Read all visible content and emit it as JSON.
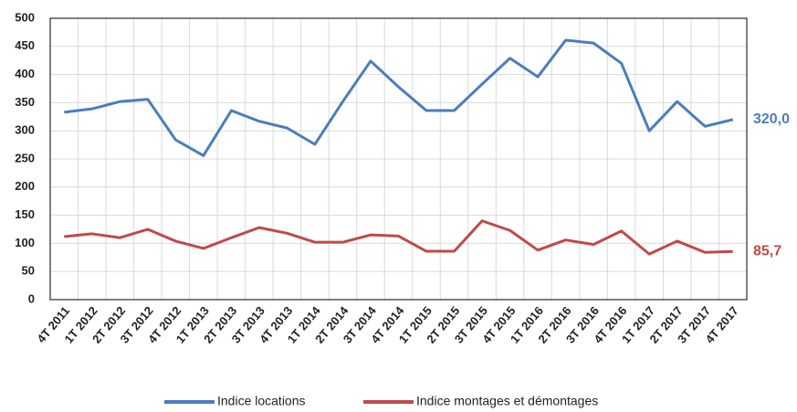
{
  "chart_data": {
    "type": "line",
    "categories": [
      "4T 2011",
      "1T 2012",
      "2T 2012",
      "3T 2012",
      "4T 2012",
      "1T 2013",
      "2T 2013",
      "3T 2013",
      "4T 2013",
      "1T 2014",
      "2T 2014",
      "3T 2014",
      "4T 2014",
      "1T 2015",
      "2T 2015",
      "3T 2015",
      "4T 2015",
      "1T 2016",
      "2T 2016",
      "3T 2016",
      "4T 2016",
      "1T 2017",
      "2T 2017",
      "3T 2017",
      "4T 2017"
    ],
    "series": [
      {
        "name": "Indice locations",
        "color": "#4a7ebb",
        "values": [
          333,
          339,
          352,
          356,
          284,
          256,
          336,
          317,
          305,
          276,
          352,
          424,
          378,
          336,
          336,
          383,
          429,
          396,
          461,
          456,
          420,
          300,
          352,
          308,
          320
        ],
        "value_labels": [
          null,
          null,
          null,
          null,
          null,
          null,
          null,
          null,
          null,
          null,
          null,
          null,
          null,
          null,
          null,
          null,
          null,
          null,
          null,
          null,
          null,
          null,
          null,
          null,
          "320,0"
        ]
      },
      {
        "name": "Indice montages et démontages",
        "color": "#be4b48",
        "values": [
          112,
          117,
          110,
          125,
          104,
          91,
          110,
          128,
          118,
          102,
          102,
          115,
          113,
          86,
          86,
          140,
          123,
          88,
          106,
          98,
          122,
          81,
          104,
          84,
          85.7
        ],
        "value_labels": [
          null,
          null,
          null,
          null,
          null,
          null,
          null,
          null,
          null,
          null,
          null,
          null,
          null,
          null,
          null,
          null,
          null,
          null,
          null,
          null,
          null,
          null,
          null,
          null,
          "85,7"
        ]
      }
    ],
    "ylim": [
      0,
      500
    ],
    "yticks": [
      0,
      50,
      100,
      150,
      200,
      250,
      300,
      350,
      400,
      450,
      500
    ],
    "grid": true,
    "legend": "bottom"
  }
}
